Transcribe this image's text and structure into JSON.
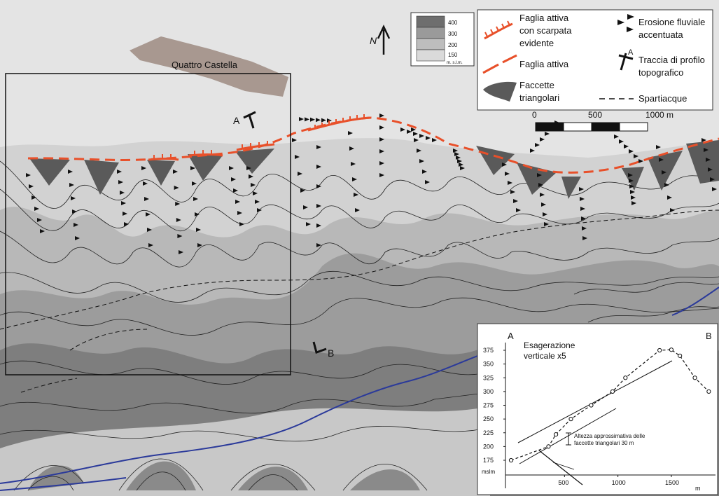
{
  "place_label": "Quattro Castella",
  "north_label": "N",
  "profile_markers": {
    "a": "A",
    "b": "B"
  },
  "elevation_legend": {
    "bands": [
      {
        "value": "400",
        "color": "#6e6e6e"
      },
      {
        "value": "300",
        "color": "#9a9a9a"
      },
      {
        "value": "200",
        "color": "#bdbdbd"
      },
      {
        "value": "150",
        "color": "#dadada"
      }
    ],
    "unit": "m. s.l.m."
  },
  "legend": {
    "fault_scarp_line1": "Faglia attiva",
    "fault_scarp_line2": "con scarpata",
    "fault_scarp_line3": "evidente",
    "fault_active": "Faglia attiva",
    "facets_line1": "Faccette",
    "facets_line2": "triangolari",
    "erosion_line1": "Erosione fluviale",
    "erosion_line2": "accentuata",
    "profile_trace_line1": "Traccia di profilo",
    "profile_trace_line2": "topografico",
    "profile_trace_letter": "A",
    "divide": "Spartiacque"
  },
  "scale_bar": {
    "ticks": [
      "0",
      "500",
      "1000 m"
    ]
  },
  "colors": {
    "fault": "#e8502a",
    "facet": "#5a5a5a",
    "river": "#2b3a9a",
    "urban": "#a89890"
  },
  "profile_chart": {
    "corner_left": "A",
    "corner_right": "B",
    "title_line1": "Esagerazione",
    "title_line2": "verticale x5",
    "y_ticks": [
      "375",
      "350",
      "325",
      "300",
      "275",
      "250",
      "225",
      "200",
      "175"
    ],
    "y_unit": "mslm",
    "x_ticks": [
      "500",
      "1000",
      "1500"
    ],
    "x_unit": "m",
    "annotation_line1": "Altezza approssimativa delle",
    "annotation_line2": "faccette triangolari 30 m",
    "points": [
      {
        "x": 0,
        "y": 175
      },
      {
        "x": 350,
        "y": 200
      },
      {
        "x": 420,
        "y": 222
      },
      {
        "x": 560,
        "y": 250
      },
      {
        "x": 750,
        "y": 275
      },
      {
        "x": 950,
        "y": 300
      },
      {
        "x": 1070,
        "y": 325
      },
      {
        "x": 1390,
        "y": 375
      },
      {
        "x": 1500,
        "y": 376
      },
      {
        "x": 1580,
        "y": 365
      },
      {
        "x": 1720,
        "y": 325
      },
      {
        "x": 1850,
        "y": 300
      }
    ]
  }
}
